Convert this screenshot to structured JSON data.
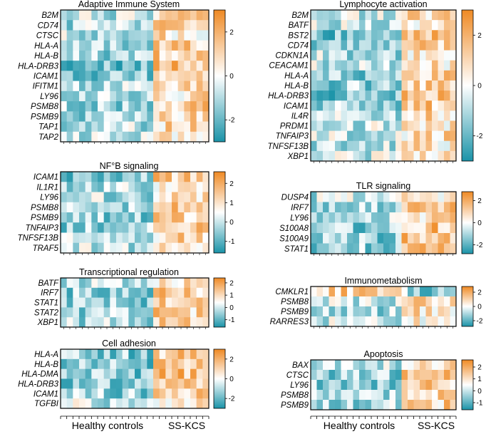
{
  "figure": {
    "x_group_labels": [
      "Healthy controls",
      "SS-KCS"
    ],
    "n_healthy": 15,
    "n_sskcs": 9
  },
  "colors": {
    "low": "#1a93a8",
    "mid": "#ffffff",
    "high": "#ef8a24",
    "border": "#000000"
  },
  "chart_data": [
    {
      "type": "heatmap",
      "title": "Adaptive  Immune System",
      "rows": [
        "B2M",
        "CD74",
        "CTSC",
        "HLA-A",
        "HLA-B",
        "HLA-DRB3",
        "ICAM1",
        "IFITM1",
        "LY96",
        "PSMB8",
        "PSMB9",
        "TAP1",
        "TAP2"
      ],
      "columns": 24,
      "group_sizes": [
        15,
        9
      ],
      "colorbar": {
        "min": -3,
        "max": 3,
        "ticks": [
          2,
          0,
          -2
        ]
      },
      "row_trend": [
        0.5,
        0.6,
        0.5,
        0.8,
        0.8,
        1.0,
        0.9,
        0.6,
        0.5,
        0.7,
        0.7,
        0.6,
        0.5
      ]
    },
    {
      "type": "heatmap",
      "title": "Lymphocyte activation",
      "rows": [
        "B2M",
        "BATF",
        "BST2",
        "CD74",
        "CDKN1A",
        "CEACAM1",
        "HLA-A",
        "HLA-B",
        "HLA-DRB3",
        "ICAM1",
        "IL4R",
        "PRDM1",
        "TNFAIP3",
        "TNFSF13B",
        "XBP1"
      ],
      "columns": 24,
      "group_sizes": [
        15,
        9
      ],
      "colorbar": {
        "min": -3,
        "max": 3,
        "ticks": [
          2,
          0,
          -2
        ]
      },
      "row_trend": [
        0.5,
        0.4,
        1.0,
        0.8,
        0.6,
        0.5,
        0.8,
        0.8,
        1.0,
        0.8,
        0.6,
        0.4,
        0.5,
        0.5,
        0.4
      ]
    },
    {
      "type": "heatmap",
      "title": "NF°B signaling",
      "rows": [
        "ICAM1",
        "IL1R1",
        "LY96",
        "PSMB8",
        "PSMB9",
        "TNFAIP3",
        "TNFSF13B",
        "TRAF5"
      ],
      "columns": 24,
      "group_sizes": [
        15,
        9
      ],
      "colorbar": {
        "min": -1.6,
        "max": 2.6,
        "ticks": [
          2,
          1,
          0,
          -1
        ]
      },
      "row_trend": [
        0.9,
        0.5,
        0.6,
        0.7,
        0.8,
        0.8,
        0.6,
        0.5
      ]
    },
    {
      "type": "heatmap",
      "title": "TLR signaling",
      "rows": [
        "DUSP4",
        "IRF7",
        "LY96",
        "S100A8",
        "S100A9",
        "STAT1"
      ],
      "columns": 24,
      "group_sizes": [
        15,
        9
      ],
      "colorbar": {
        "min": -2.8,
        "max": 2.8,
        "ticks": [
          2,
          0,
          -2
        ]
      },
      "row_trend": [
        0.5,
        0.7,
        0.6,
        0.9,
        0.9,
        0.8
      ]
    },
    {
      "type": "heatmap",
      "title": "Transcriptional regulation",
      "rows": [
        "BATF",
        "IRF7",
        "STAT1",
        "STAT2",
        "XBP1"
      ],
      "columns": 24,
      "group_sizes": [
        15,
        9
      ],
      "colorbar": {
        "min": -1.6,
        "max": 2.4,
        "ticks": [
          2,
          1,
          0,
          -1
        ]
      },
      "row_trend": [
        0.6,
        0.8,
        0.9,
        0.7,
        0.6
      ]
    },
    {
      "type": "heatmap",
      "title": "Immunometabolism",
      "rows": [
        "CMKLR1",
        "PSMB8",
        "PSMB9",
        "RARRES3"
      ],
      "columns": 24,
      "group_sizes": [
        15,
        9
      ],
      "colorbar": {
        "min": -2.8,
        "max": 2.8,
        "ticks": [
          2,
          0,
          -2
        ]
      },
      "row_trend": [
        -0.8,
        0.5,
        0.6,
        0.4
      ]
    },
    {
      "type": "heatmap",
      "title": "Cell adhesion",
      "rows": [
        "HLA-A",
        "HLA-B",
        "HLA-DMA",
        "HLA-DRB3",
        "ICAM1",
        "TGFBI"
      ],
      "columns": 24,
      "group_sizes": [
        15,
        9
      ],
      "colorbar": {
        "min": -3,
        "max": 3,
        "ticks": [
          2,
          0,
          -2
        ]
      },
      "row_trend": [
        0.9,
        0.9,
        0.9,
        1.0,
        0.8,
        0.4
      ]
    },
    {
      "type": "heatmap",
      "title": "Apoptosis",
      "rows": [
        "BAX",
        "CTSC",
        "LY96",
        "PSMB8",
        "PSMB9"
      ],
      "columns": 24,
      "group_sizes": [
        15,
        9
      ],
      "colorbar": {
        "min": -1.6,
        "max": 2.6,
        "ticks": [
          2,
          1,
          0,
          -1
        ]
      },
      "row_trend": [
        0.6,
        0.8,
        0.8,
        0.7,
        0.7
      ]
    }
  ]
}
